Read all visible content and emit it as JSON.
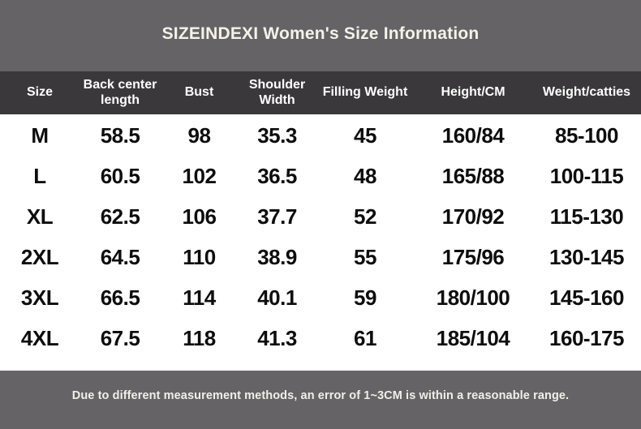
{
  "title": "SIZEINDEXI Women's Size Information",
  "footer_note": "Due to different measurement methods, an error of 1~3CM is within a reasonable range.",
  "colors": {
    "banner_gray": "#666366",
    "header_dark": "#3a383a",
    "title_text": "#f5f2e9",
    "body_text": "#0d0d0d",
    "row_background": "#ffffff"
  },
  "chart_data": {
    "type": "table",
    "title": "SIZEINDEXI Women's Size Information",
    "columns": [
      "Size",
      "Back center length",
      "Bust",
      "Shoulder Width",
      "Filling Weight",
      "Height/CM",
      "Weight/catties"
    ],
    "rows": [
      [
        "M",
        "58.5",
        "98",
        "35.3",
        "45",
        "160/84",
        "85-100"
      ],
      [
        "L",
        "60.5",
        "102",
        "36.5",
        "48",
        "165/88",
        "100-115"
      ],
      [
        "XL",
        "62.5",
        "106",
        "37.7",
        "52",
        "170/92",
        "115-130"
      ],
      [
        "2XL",
        "64.5",
        "110",
        "38.9",
        "55",
        "175/96",
        "130-145"
      ],
      [
        "3XL",
        "66.5",
        "114",
        "40.1",
        "59",
        "180/100",
        "145-160"
      ],
      [
        "4XL",
        "67.5",
        "118",
        "41.3",
        "61",
        "185/104",
        "160-175"
      ]
    ],
    "annotations": [
      "Due to different measurement methods, an error of 1~3CM is within a reasonable range."
    ]
  }
}
